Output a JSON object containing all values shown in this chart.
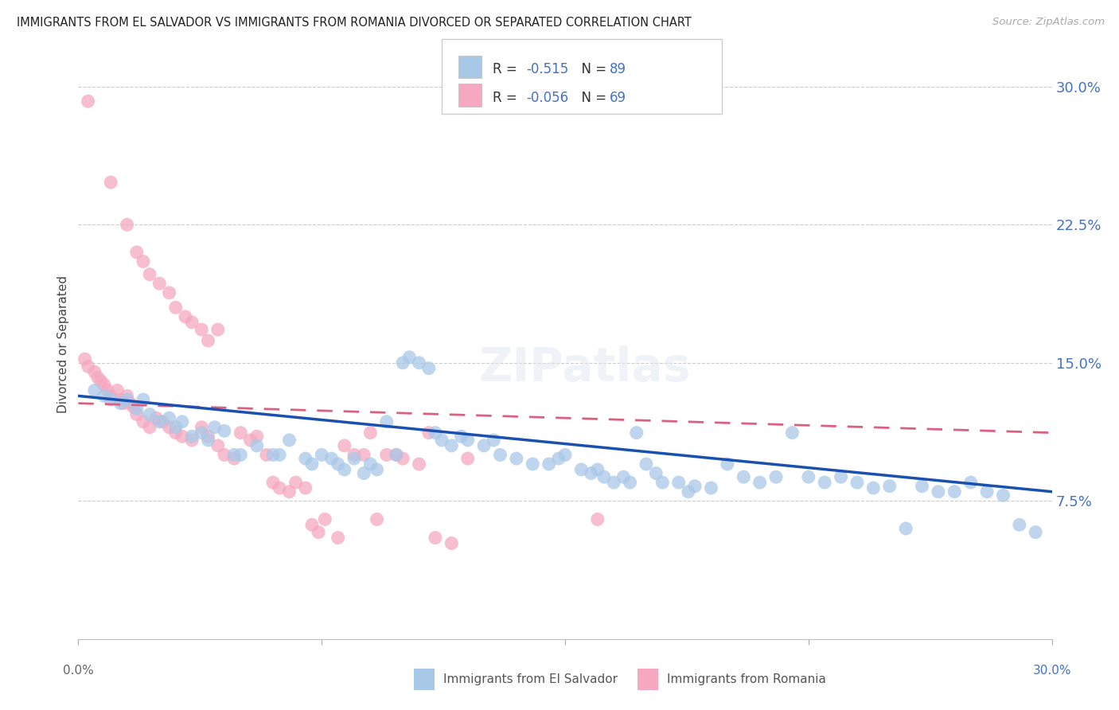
{
  "title": "IMMIGRANTS FROM EL SALVADOR VS IMMIGRANTS FROM ROMANIA DIVORCED OR SEPARATED CORRELATION CHART",
  "source": "Source: ZipAtlas.com",
  "ylabel": "Divorced or Separated",
  "legend_label1": "Immigrants from El Salvador",
  "legend_label2": "Immigrants from Romania",
  "R1": -0.515,
  "N1": 89,
  "R2": -0.056,
  "N2": 69,
  "xmin": 0.0,
  "xmax": 0.3,
  "ymin": 0.0,
  "ymax": 0.32,
  "yticks": [
    0.075,
    0.15,
    0.225,
    0.3
  ],
  "ytick_labels": [
    "7.5%",
    "15.0%",
    "22.5%",
    "30.0%"
  ],
  "color_blue": "#a8c8e8",
  "color_pink": "#f5a8c0",
  "line_blue": "#1a50b0",
  "line_pink": "#d96080",
  "grid_color": "#cccccc",
  "blue_line_start_x": 0.0,
  "blue_line_start_y": 0.132,
  "blue_line_end_x": 0.3,
  "blue_line_end_y": 0.08,
  "pink_line_start_x": 0.0,
  "pink_line_start_y": 0.128,
  "pink_line_end_x": 0.3,
  "pink_line_end_y": 0.112,
  "blue_pts": [
    [
      0.005,
      0.135
    ],
    [
      0.008,
      0.132
    ],
    [
      0.01,
      0.13
    ],
    [
      0.013,
      0.128
    ],
    [
      0.015,
      0.13
    ],
    [
      0.018,
      0.125
    ],
    [
      0.02,
      0.13
    ],
    [
      0.022,
      0.122
    ],
    [
      0.025,
      0.118
    ],
    [
      0.028,
      0.12
    ],
    [
      0.03,
      0.115
    ],
    [
      0.032,
      0.118
    ],
    [
      0.035,
      0.11
    ],
    [
      0.038,
      0.112
    ],
    [
      0.04,
      0.108
    ],
    [
      0.042,
      0.115
    ],
    [
      0.045,
      0.113
    ],
    [
      0.048,
      0.1
    ],
    [
      0.05,
      0.1
    ],
    [
      0.055,
      0.105
    ],
    [
      0.06,
      0.1
    ],
    [
      0.062,
      0.1
    ],
    [
      0.065,
      0.108
    ],
    [
      0.07,
      0.098
    ],
    [
      0.072,
      0.095
    ],
    [
      0.075,
      0.1
    ],
    [
      0.078,
      0.098
    ],
    [
      0.08,
      0.095
    ],
    [
      0.082,
      0.092
    ],
    [
      0.085,
      0.098
    ],
    [
      0.088,
      0.09
    ],
    [
      0.09,
      0.095
    ],
    [
      0.092,
      0.092
    ],
    [
      0.095,
      0.118
    ],
    [
      0.098,
      0.1
    ],
    [
      0.1,
      0.15
    ],
    [
      0.102,
      0.153
    ],
    [
      0.105,
      0.15
    ],
    [
      0.108,
      0.147
    ],
    [
      0.11,
      0.112
    ],
    [
      0.112,
      0.108
    ],
    [
      0.115,
      0.105
    ],
    [
      0.118,
      0.11
    ],
    [
      0.12,
      0.108
    ],
    [
      0.125,
      0.105
    ],
    [
      0.128,
      0.108
    ],
    [
      0.13,
      0.1
    ],
    [
      0.135,
      0.098
    ],
    [
      0.14,
      0.095
    ],
    [
      0.145,
      0.095
    ],
    [
      0.148,
      0.098
    ],
    [
      0.15,
      0.1
    ],
    [
      0.155,
      0.092
    ],
    [
      0.158,
      0.09
    ],
    [
      0.16,
      0.092
    ],
    [
      0.162,
      0.088
    ],
    [
      0.165,
      0.085
    ],
    [
      0.168,
      0.088
    ],
    [
      0.17,
      0.085
    ],
    [
      0.172,
      0.112
    ],
    [
      0.175,
      0.095
    ],
    [
      0.178,
      0.09
    ],
    [
      0.18,
      0.085
    ],
    [
      0.185,
      0.085
    ],
    [
      0.188,
      0.08
    ],
    [
      0.19,
      0.083
    ],
    [
      0.195,
      0.082
    ],
    [
      0.2,
      0.095
    ],
    [
      0.205,
      0.088
    ],
    [
      0.21,
      0.085
    ],
    [
      0.215,
      0.088
    ],
    [
      0.22,
      0.112
    ],
    [
      0.225,
      0.088
    ],
    [
      0.23,
      0.085
    ],
    [
      0.235,
      0.088
    ],
    [
      0.24,
      0.085
    ],
    [
      0.245,
      0.082
    ],
    [
      0.25,
      0.083
    ],
    [
      0.255,
      0.06
    ],
    [
      0.26,
      0.083
    ],
    [
      0.265,
      0.08
    ],
    [
      0.27,
      0.08
    ],
    [
      0.275,
      0.085
    ],
    [
      0.28,
      0.08
    ],
    [
      0.285,
      0.078
    ],
    [
      0.29,
      0.062
    ],
    [
      0.295,
      0.058
    ]
  ],
  "pink_pts": [
    [
      0.003,
      0.292
    ],
    [
      0.01,
      0.248
    ],
    [
      0.015,
      0.225
    ],
    [
      0.018,
      0.21
    ],
    [
      0.02,
      0.205
    ],
    [
      0.022,
      0.198
    ],
    [
      0.025,
      0.193
    ],
    [
      0.028,
      0.188
    ],
    [
      0.03,
      0.18
    ],
    [
      0.033,
      0.175
    ],
    [
      0.035,
      0.172
    ],
    [
      0.038,
      0.168
    ],
    [
      0.04,
      0.162
    ],
    [
      0.043,
      0.168
    ],
    [
      0.002,
      0.152
    ],
    [
      0.003,
      0.148
    ],
    [
      0.005,
      0.145
    ],
    [
      0.006,
      0.142
    ],
    [
      0.007,
      0.14
    ],
    [
      0.008,
      0.138
    ],
    [
      0.009,
      0.135
    ],
    [
      0.01,
      0.132
    ],
    [
      0.012,
      0.135
    ],
    [
      0.013,
      0.13
    ],
    [
      0.014,
      0.128
    ],
    [
      0.015,
      0.132
    ],
    [
      0.016,
      0.128
    ],
    [
      0.017,
      0.126
    ],
    [
      0.018,
      0.122
    ],
    [
      0.02,
      0.118
    ],
    [
      0.022,
      0.115
    ],
    [
      0.024,
      0.12
    ],
    [
      0.026,
      0.118
    ],
    [
      0.028,
      0.115
    ],
    [
      0.03,
      0.112
    ],
    [
      0.032,
      0.11
    ],
    [
      0.035,
      0.108
    ],
    [
      0.038,
      0.115
    ],
    [
      0.04,
      0.11
    ],
    [
      0.043,
      0.105
    ],
    [
      0.045,
      0.1
    ],
    [
      0.048,
      0.098
    ],
    [
      0.05,
      0.112
    ],
    [
      0.053,
      0.108
    ],
    [
      0.055,
      0.11
    ],
    [
      0.058,
      0.1
    ],
    [
      0.06,
      0.085
    ],
    [
      0.062,
      0.082
    ],
    [
      0.065,
      0.08
    ],
    [
      0.067,
      0.085
    ],
    [
      0.07,
      0.082
    ],
    [
      0.072,
      0.062
    ],
    [
      0.074,
      0.058
    ],
    [
      0.076,
      0.065
    ],
    [
      0.08,
      0.055
    ],
    [
      0.082,
      0.105
    ],
    [
      0.085,
      0.1
    ],
    [
      0.088,
      0.1
    ],
    [
      0.09,
      0.112
    ],
    [
      0.092,
      0.065
    ],
    [
      0.095,
      0.1
    ],
    [
      0.098,
      0.1
    ],
    [
      0.1,
      0.098
    ],
    [
      0.105,
      0.095
    ],
    [
      0.108,
      0.112
    ],
    [
      0.11,
      0.055
    ],
    [
      0.115,
      0.052
    ],
    [
      0.12,
      0.098
    ],
    [
      0.16,
      0.065
    ]
  ]
}
